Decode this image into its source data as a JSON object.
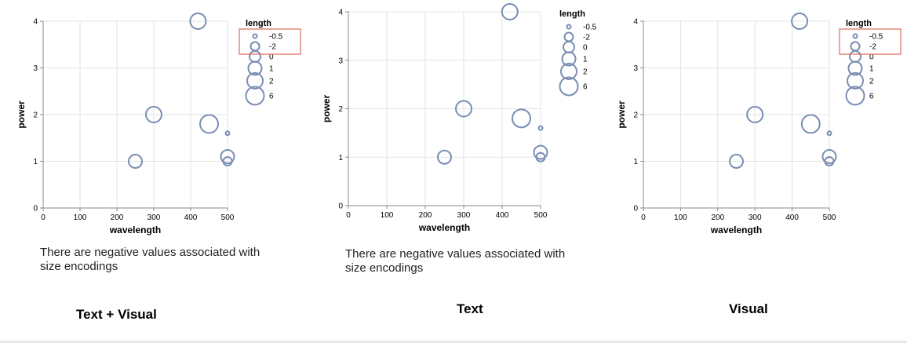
{
  "colors": {
    "mark": "#7a8db3",
    "grid": "#e3e3e3",
    "axis": "#888888",
    "highlight": "#e06a60"
  },
  "panels": [
    {
      "caption": "Text + Visual",
      "message": "There are negative values associated with size encodings",
      "highlight_negative_legend": true
    },
    {
      "caption": "Text",
      "message": "There are negative values associated with size encodings",
      "highlight_negative_legend": false
    },
    {
      "caption": "Visual",
      "message": "",
      "highlight_negative_legend": true
    }
  ],
  "chart_data": [
    {
      "type": "scatter",
      "title": "",
      "xlabel": "wavelength",
      "ylabel": "power",
      "xlim": [
        0,
        500
      ],
      "ylim": [
        0,
        4
      ],
      "x_ticks": [
        0,
        100,
        200,
        300,
        400,
        500
      ],
      "y_ticks": [
        0,
        1,
        2,
        3,
        4
      ],
      "grid": true,
      "size_field": "length",
      "legend_title": "length",
      "legend_position": "right",
      "legend_values": [
        "-0.5",
        "-2",
        "0",
        "1",
        "2",
        "6"
      ],
      "points": [
        {
          "x": 250,
          "y": 1.0,
          "length": 1
        },
        {
          "x": 300,
          "y": 2.0,
          "length": 2
        },
        {
          "x": 420,
          "y": 4.0,
          "length": 2
        },
        {
          "x": 450,
          "y": 1.8,
          "length": 6
        },
        {
          "x": 500,
          "y": 1.6,
          "length": -0.5
        },
        {
          "x": 500,
          "y": 1.1,
          "length": 1
        },
        {
          "x": 500,
          "y": 1.0,
          "length": -2
        }
      ]
    },
    {
      "type": "scatter",
      "title": "",
      "xlabel": "wavelength",
      "ylabel": "power",
      "xlim": [
        0,
        500
      ],
      "ylim": [
        0,
        4
      ],
      "x_ticks": [
        0,
        100,
        200,
        300,
        400,
        500
      ],
      "y_ticks": [
        0,
        1,
        2,
        3,
        4
      ],
      "grid": true,
      "size_field": "length",
      "legend_title": "length",
      "legend_position": "right",
      "legend_values": [
        "-0.5",
        "-2",
        "0",
        "1",
        "2",
        "6"
      ],
      "points": [
        {
          "x": 250,
          "y": 1.0,
          "length": 1
        },
        {
          "x": 300,
          "y": 2.0,
          "length": 2
        },
        {
          "x": 420,
          "y": 4.0,
          "length": 2
        },
        {
          "x": 450,
          "y": 1.8,
          "length": 6
        },
        {
          "x": 500,
          "y": 1.6,
          "length": -0.5
        },
        {
          "x": 500,
          "y": 1.1,
          "length": 1
        },
        {
          "x": 500,
          "y": 1.0,
          "length": -2
        }
      ]
    },
    {
      "type": "scatter",
      "title": "",
      "xlabel": "wavelength",
      "ylabel": "power",
      "xlim": [
        0,
        500
      ],
      "ylim": [
        0,
        4
      ],
      "x_ticks": [
        0,
        100,
        200,
        300,
        400,
        500
      ],
      "y_ticks": [
        0,
        1,
        2,
        3,
        4
      ],
      "grid": true,
      "size_field": "length",
      "legend_title": "length",
      "legend_position": "right",
      "legend_values": [
        "-0.5",
        "-2",
        "0",
        "1",
        "2",
        "6"
      ],
      "points": [
        {
          "x": 250,
          "y": 1.0,
          "length": 1
        },
        {
          "x": 300,
          "y": 2.0,
          "length": 2
        },
        {
          "x": 420,
          "y": 4.0,
          "length": 2
        },
        {
          "x": 450,
          "y": 1.8,
          "length": 6
        },
        {
          "x": 500,
          "y": 1.6,
          "length": -0.5
        },
        {
          "x": 500,
          "y": 1.1,
          "length": 1
        },
        {
          "x": 500,
          "y": 1.0,
          "length": -2
        }
      ]
    }
  ]
}
